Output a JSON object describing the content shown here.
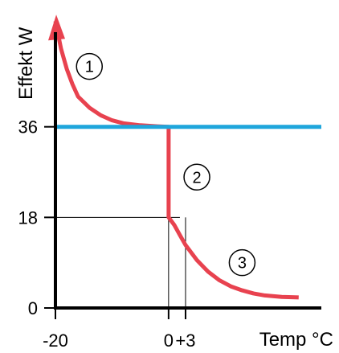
{
  "chart_data": {
    "type": "line",
    "xlabel": "Temp °C",
    "ylabel": "Effekt W",
    "x_ticks": [
      {
        "value": -20,
        "label": "-20"
      },
      {
        "value": 0,
        "label": "0"
      },
      {
        "value": 3,
        "label": "+3"
      }
    ],
    "y_ticks": [
      {
        "value": 0,
        "label": "0"
      },
      {
        "value": 18,
        "label": "18"
      },
      {
        "value": 36,
        "label": "36"
      }
    ],
    "xlim": [
      -20,
      27
    ],
    "ylim": [
      0,
      58
    ],
    "grid": false,
    "series": [
      {
        "color": "#e8424f",
        "points": [
          [
            -20,
            57
          ],
          [
            -19,
            51.5
          ],
          [
            -18,
            47.5
          ],
          [
            -17,
            44.5
          ],
          [
            -16,
            42
          ],
          [
            -14,
            39.8
          ],
          [
            -12,
            38.3
          ],
          [
            -10,
            37.3
          ],
          [
            -8,
            36.7
          ],
          [
            -5,
            36.3
          ],
          [
            -2,
            36.1
          ],
          [
            0,
            36
          ],
          [
            0,
            18
          ],
          [
            1,
            16.5
          ],
          [
            2,
            14.5
          ],
          [
            3,
            12.5
          ],
          [
            5,
            9.5
          ],
          [
            7,
            7.2
          ],
          [
            9,
            5.5
          ],
          [
            11,
            4.3
          ],
          [
            13,
            3.5
          ],
          [
            15,
            2.9
          ],
          [
            17,
            2.5
          ],
          [
            20,
            2.2
          ],
          [
            23,
            2.1
          ]
        ]
      },
      {
        "color": "#1ea6dc",
        "points": [
          [
            -20,
            36
          ],
          [
            27,
            36
          ]
        ]
      }
    ],
    "reference_lines": [
      {
        "type": "horizontal",
        "y": 18,
        "x_from": -20,
        "x_to": 2
      },
      {
        "type": "vertical",
        "x": 0,
        "y_from": 0,
        "y_to": 18
      },
      {
        "type": "vertical",
        "x": 3,
        "y_from": 0,
        "y_to": 18
      }
    ],
    "annotations": [
      {
        "text": "1",
        "x": -14,
        "y": 48
      },
      {
        "text": "2",
        "x": 5,
        "y": 26
      },
      {
        "text": "3",
        "x": 13,
        "y": 9
      }
    ],
    "colors": {
      "axis": "#000000",
      "curve": "#e8424f",
      "hline": "#1ea6dc"
    }
  }
}
